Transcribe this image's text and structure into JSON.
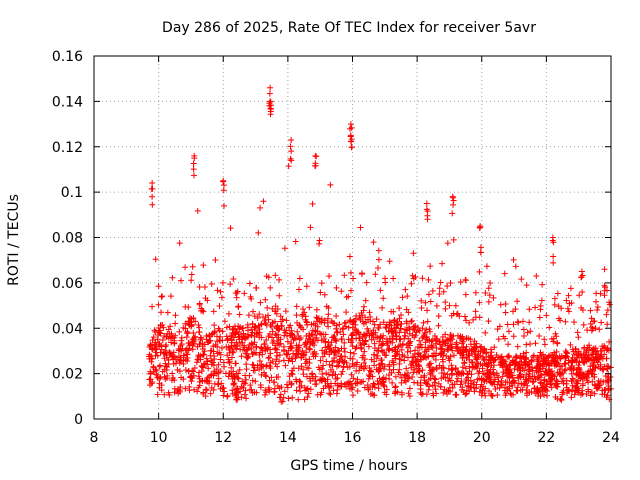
{
  "chart_data": {
    "type": "scatter",
    "title": "Day 286 of 2025, Rate Of TEC Index for receiver 5avr",
    "xlabel": "GPS time / hours",
    "ylabel": "ROTI / TECUs",
    "xlim": [
      8,
      24
    ],
    "ylim": [
      0,
      0.16
    ],
    "x_ticks": [
      8,
      10,
      12,
      14,
      16,
      18,
      20,
      22,
      24
    ],
    "x_tick_labels": [
      "8",
      "10",
      "12",
      "14",
      "16",
      "18",
      "20",
      "22",
      "24"
    ],
    "y_ticks": [
      0,
      0.02,
      0.04,
      0.06,
      0.08,
      0.1,
      0.12,
      0.14,
      0.16
    ],
    "y_tick_labels": [
      "0",
      "0.02",
      "0.04",
      "0.06",
      "0.08",
      "0.1",
      "0.12",
      "0.14",
      "0.16"
    ],
    "grid": true,
    "marker": "+",
    "marker_color": "#ff0000",
    "series": [
      {
        "name": "ROTI",
        "color": "#ff0000",
        "envelope_hours": [
          9.7,
          10.0,
          10.5,
          11.0,
          11.5,
          12.0,
          12.5,
          13.0,
          13.5,
          14.0,
          14.5,
          15.0,
          15.5,
          16.0,
          16.5,
          17.0,
          17.5,
          18.0,
          18.5,
          19.0,
          19.5,
          20.0,
          20.5,
          21.0,
          21.5,
          22.0,
          22.5,
          23.0,
          23.5,
          24.0
        ],
        "envelope_max": [
          0.105,
          0.06,
          0.07,
          0.116,
          0.06,
          0.105,
          0.075,
          0.085,
          0.146,
          0.123,
          0.085,
          0.116,
          0.1,
          0.13,
          0.083,
          0.08,
          0.075,
          0.095,
          0.07,
          0.098,
          0.063,
          0.085,
          0.06,
          0.075,
          0.055,
          0.08,
          0.05,
          0.065,
          0.06,
          0.065
        ],
        "envelope_typical": [
          0.025,
          0.028,
          0.025,
          0.03,
          0.025,
          0.028,
          0.026,
          0.028,
          0.03,
          0.028,
          0.027,
          0.03,
          0.028,
          0.03,
          0.03,
          0.028,
          0.03,
          0.028,
          0.026,
          0.025,
          0.025,
          0.022,
          0.02,
          0.02,
          0.02,
          0.02,
          0.02,
          0.022,
          0.022,
          0.022
        ],
        "envelope_min": [
          0.012,
          0.01,
          0.01,
          0.01,
          0.01,
          0.01,
          0.008,
          0.008,
          0.006,
          0.008,
          0.008,
          0.01,
          0.01,
          0.01,
          0.01,
          0.01,
          0.01,
          0.01,
          0.01,
          0.01,
          0.01,
          0.01,
          0.01,
          0.01,
          0.01,
          0.01,
          0.008,
          0.01,
          0.01,
          0.008
        ]
      }
    ],
    "notable_points": [
      {
        "x": 9.8,
        "y": 0.104
      },
      {
        "x": 11.1,
        "y": 0.116
      },
      {
        "x": 12.0,
        "y": 0.105
      },
      {
        "x": 13.45,
        "y": 0.146
      },
      {
        "x": 13.45,
        "y": 0.14
      },
      {
        "x": 14.1,
        "y": 0.123
      },
      {
        "x": 14.85,
        "y": 0.116
      },
      {
        "x": 15.95,
        "y": 0.13
      },
      {
        "x": 15.95,
        "y": 0.125
      },
      {
        "x": 18.3,
        "y": 0.095
      },
      {
        "x": 19.1,
        "y": 0.098
      },
      {
        "x": 19.95,
        "y": 0.085
      },
      {
        "x": 22.2,
        "y": 0.08
      },
      {
        "x": 23.1,
        "y": 0.065
      },
      {
        "x": 23.8,
        "y": 0.066
      }
    ]
  }
}
